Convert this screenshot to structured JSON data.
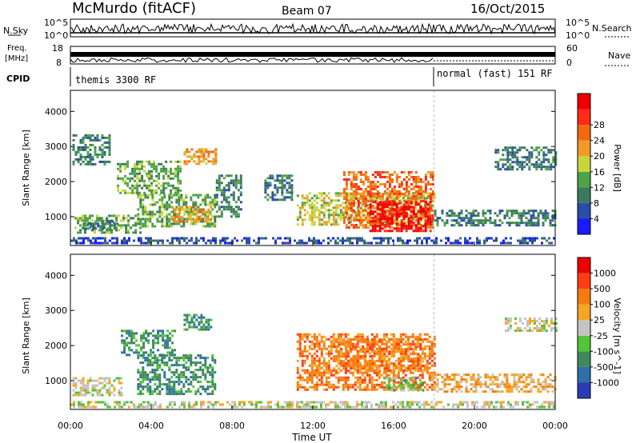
{
  "header": {
    "station": "McMurdo (fitACF)",
    "beam": "Beam 07",
    "date": "16/Oct/2015"
  },
  "noise_panel": {
    "left_label": "N.Sky",
    "right_label": "N.Search",
    "left_ticks": [
      "10^5",
      "10^0"
    ],
    "right_ticks": [
      "10^5",
      "10^0"
    ]
  },
  "freq_panel": {
    "left_label_line1": "Freq.",
    "left_label_line2": "[MHz]",
    "left_ticks": [
      "18",
      "8"
    ],
    "right_label": "Nave",
    "right_ticks": [
      "60",
      "0"
    ]
  },
  "cpid_panel": {
    "label": "CPID",
    "segments": [
      {
        "text": "themis 3300 RF",
        "start_hour": 0
      },
      {
        "text": "normal (fast) 151 RF",
        "start_hour": 18
      }
    ]
  },
  "chart_data": [
    {
      "type": "heatmap",
      "name": "power",
      "ylabel": "Slant Range [km]",
      "xlabel": "Time UT",
      "x_ticks": [
        "00:00",
        "04:00",
        "08:00",
        "12:00",
        "16:00",
        "20:00",
        "00:00"
      ],
      "xlim_hours": [
        0,
        24
      ],
      "y_ticks": [
        1000,
        2000,
        3000,
        4000
      ],
      "ylim": [
        180,
        4600
      ],
      "colorbar": {
        "label": "Power [dB]",
        "ticks": [
          "4",
          "8",
          "12",
          "16",
          "20",
          "24",
          "28"
        ],
        "colors": [
          "#1a1aff",
          "#2b4da8",
          "#3c7a5e",
          "#4fa24a",
          "#c8d63c",
          "#f09a2a",
          "#f26a10",
          "#ff2a1a",
          "#ee0000"
        ]
      },
      "regions": [
        {
          "t": [
            0.2,
            3.5
          ],
          "r": [
            560,
            1060
          ],
          "level": 3
        },
        {
          "t": [
            0.6,
            2.3
          ],
          "r": [
            640,
            900
          ],
          "level": 2
        },
        {
          "t": [
            3.3,
            7.2
          ],
          "r": [
            720,
            1650
          ],
          "level": 3
        },
        {
          "t": [
            5.0,
            7.0
          ],
          "r": [
            850,
            1300
          ],
          "level": 5
        },
        {
          "t": [
            2.3,
            5.4
          ],
          "r": [
            1700,
            2600
          ],
          "level": 3
        },
        {
          "t": [
            5.6,
            7.2
          ],
          "r": [
            2500,
            2950
          ],
          "level": 5
        },
        {
          "t": [
            0.1,
            2.0
          ],
          "r": [
            2500,
            3350
          ],
          "level": 2
        },
        {
          "t": [
            7.2,
            8.5
          ],
          "r": [
            1000,
            2200
          ],
          "level": 2
        },
        {
          "t": [
            11.2,
            18.0
          ],
          "r": [
            780,
            1700
          ],
          "level": 4
        },
        {
          "t": [
            13.5,
            18.0
          ],
          "r": [
            720,
            2300
          ],
          "level": 6
        },
        {
          "t": [
            14.8,
            17.8
          ],
          "r": [
            620,
            1450
          ],
          "level": 8
        },
        {
          "t": [
            9.6,
            11.0
          ],
          "r": [
            1500,
            2200
          ],
          "level": 2
        },
        {
          "t": [
            18.0,
            24.0
          ],
          "r": [
            750,
            1200
          ],
          "level": 2
        },
        {
          "t": [
            21.0,
            24.0
          ],
          "r": [
            2350,
            3000
          ],
          "level": 2
        },
        {
          "t": [
            0.0,
            24.0
          ],
          "r": [
            250,
            420
          ],
          "level": 1
        }
      ]
    },
    {
      "type": "heatmap",
      "name": "velocity",
      "ylabel": "Slant Range [km]",
      "xlabel": "Time UT",
      "x_ticks": [
        "00:00",
        "04:00",
        "08:00",
        "12:00",
        "16:00",
        "20:00",
        "00:00"
      ],
      "xlim_hours": [
        0,
        24
      ],
      "y_ticks": [
        1000,
        2000,
        3000,
        4000
      ],
      "ylim": [
        180,
        4600
      ],
      "colorbar": {
        "label": "Velocity [m s^-1]",
        "ticks": [
          "1000",
          "500",
          "100",
          "25",
          "-25",
          "-100",
          "-500",
          "-1000"
        ],
        "colors": [
          "#2a3ab8",
          "#2f6fa8",
          "#3f8a5a",
          "#54c43a",
          "#c4c4c4",
          "#f5a623",
          "#f57d0f",
          "#ff3c14",
          "#ee0000"
        ]
      },
      "regions": [
        {
          "t": [
            0.1,
            2.5
          ],
          "r": [
            560,
            1100
          ],
          "level": 4
        },
        {
          "t": [
            3.3,
            7.2
          ],
          "r": [
            650,
            1750
          ],
          "level": 2
        },
        {
          "t": [
            2.5,
            5.2
          ],
          "r": [
            1750,
            2450
          ],
          "level": 2
        },
        {
          "t": [
            5.6,
            7.0
          ],
          "r": [
            2450,
            2900
          ],
          "level": 2
        },
        {
          "t": [
            11.2,
            18.0
          ],
          "r": [
            720,
            2350
          ],
          "level": 6
        },
        {
          "t": [
            13.0,
            17.5
          ],
          "r": [
            1300,
            2200
          ],
          "level": 6
        },
        {
          "t": [
            15.5,
            17.5
          ],
          "r": [
            700,
            1100
          ],
          "level": 3
        },
        {
          "t": [
            18.0,
            24.0
          ],
          "r": [
            720,
            1200
          ],
          "level": 5
        },
        {
          "t": [
            21.5,
            24.0
          ],
          "r": [
            2450,
            2800
          ],
          "level": 4
        },
        {
          "t": [
            0.0,
            24.0
          ],
          "r": [
            250,
            420
          ],
          "level": 4
        }
      ]
    }
  ]
}
